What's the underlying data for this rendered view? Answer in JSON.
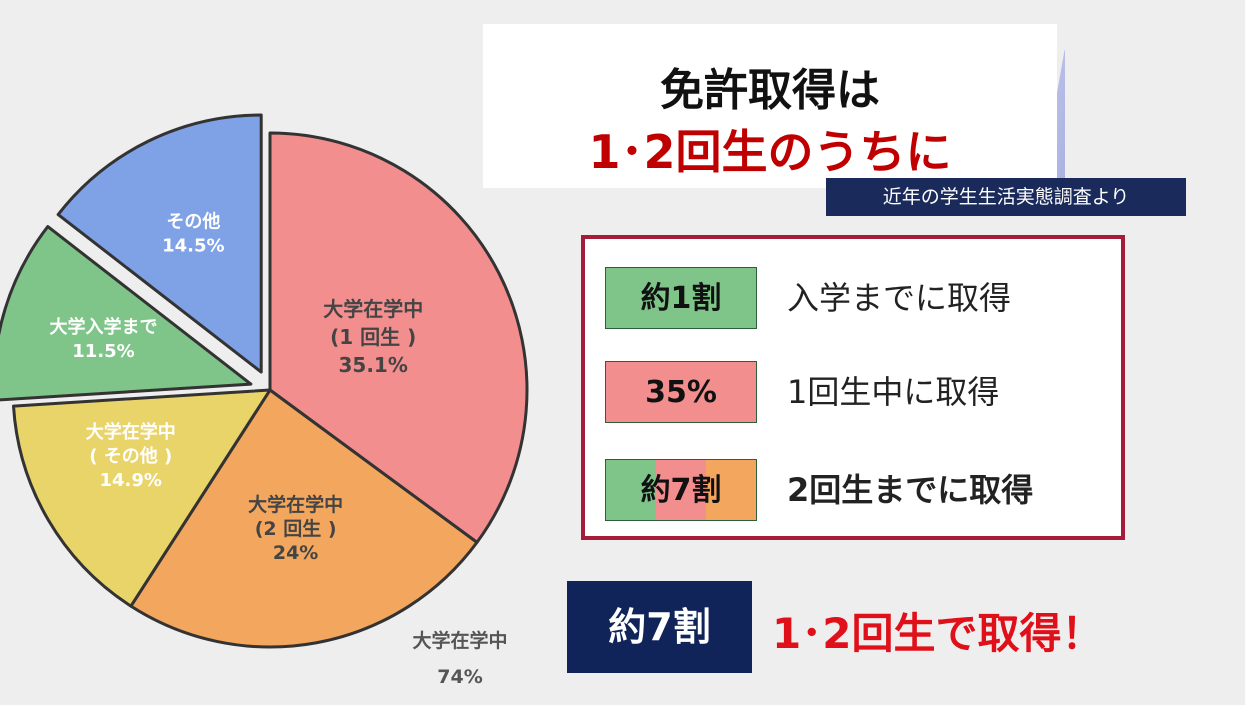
{
  "chart_data": {
    "type": "pie",
    "slices": [
      {
        "name": "大学在学中",
        "sub": "(1 回生 )",
        "value": 35.1,
        "value_label": "35.1%",
        "color": "#f28e8e"
      },
      {
        "name": "大学在学中",
        "sub": "(2 回生 )",
        "value": 24.0,
        "value_label": "24%",
        "color": "#f3a65e"
      },
      {
        "name": "大学在学中",
        "sub": "( その他 )",
        "value": 14.9,
        "value_label": "14.9%",
        "color": "#e9d46a"
      },
      {
        "name": "大学入学まで",
        "sub": "",
        "value": 11.5,
        "value_label": "11.5%",
        "color": "#7fc58a",
        "exploded": true
      },
      {
        "name": "その他",
        "sub": "",
        "value": 14.5,
        "value_label": "14.5%",
        "color": "#7fa2e6",
        "exploded": true
      }
    ],
    "group_label": {
      "name": "大学在学中",
      "value_label": "74%"
    }
  },
  "title": {
    "line1": "免許取得は",
    "line2": "1･2回生のうちに"
  },
  "source": "近年の学生生活実態調査より",
  "info": [
    {
      "tag": "約1割",
      "text": "入学までに取得",
      "tag_colors": [
        "#7fc58a"
      ],
      "bold": false
    },
    {
      "tag": "35%",
      "text": "1回生中に取得",
      "tag_colors": [
        "#f28e8e"
      ],
      "bold": false
    },
    {
      "tag": "約7割",
      "text": "2回生までに取得",
      "tag_colors": [
        "#7fc58a",
        "#f28e8e",
        "#f3a65e"
      ],
      "bold": true
    }
  ],
  "summary": {
    "tag": "約7割",
    "text": "1･2回生で取得！"
  }
}
